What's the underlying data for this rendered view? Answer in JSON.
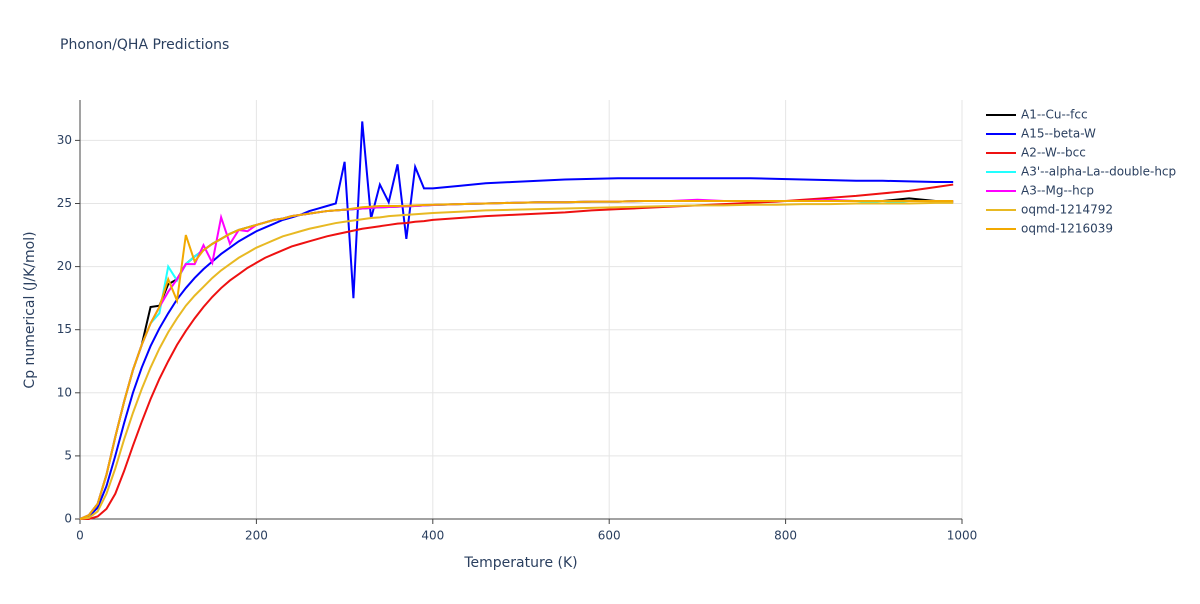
{
  "chart_data": {
    "type": "line",
    "title": "Phonon/QHA Predictions",
    "x_label": "Temperature (K)",
    "y_label": "Cp numerical (J/K/mol)",
    "x": [
      0,
      10,
      20,
      30,
      40,
      50,
      60,
      70,
      80,
      90,
      100,
      110,
      120,
      130,
      140,
      150,
      160,
      170,
      180,
      190,
      200,
      210,
      220,
      230,
      240,
      250,
      260,
      270,
      280,
      290,
      300,
      310,
      320,
      330,
      340,
      350,
      360,
      370,
      380,
      390,
      400,
      430,
      460,
      490,
      520,
      550,
      580,
      610,
      640,
      670,
      700,
      730,
      760,
      790,
      820,
      850,
      880,
      910,
      940,
      970,
      990
    ],
    "xlim": [
      0,
      1000
    ],
    "xticks": [
      0,
      200,
      400,
      600,
      800,
      1000
    ],
    "ylim": [
      0,
      33.2
    ],
    "yticks": [
      0,
      5,
      10,
      15,
      20,
      25,
      30
    ],
    "grid": true,
    "legend": "right",
    "series": [
      {
        "name": "A1--Cu--fcc",
        "color": "#000000",
        "values": [
          0,
          0.3,
          1.2,
          3.5,
          6.5,
          9.3,
          11.8,
          13.8,
          16.8,
          16.9,
          18.6,
          19.0,
          20.2,
          20.8,
          21.3,
          21.8,
          22.2,
          22.6,
          22.9,
          23.1,
          23.3,
          23.5,
          23.7,
          23.8,
          24.0,
          24.1,
          24.2,
          24.3,
          24.4,
          24.45,
          24.5,
          24.55,
          24.6,
          24.65,
          24.7,
          24.72,
          24.75,
          24.78,
          24.8,
          24.85,
          24.88,
          24.95,
          25.0,
          25.05,
          25.1,
          25.1,
          25.15,
          25.15,
          25.2,
          25.2,
          25.2,
          25.2,
          25.2,
          25.2,
          25.2,
          25.2,
          25.2,
          25.2,
          25.4,
          25.2,
          25.1
        ]
      },
      {
        "name": "A15--beta-W",
        "color": "#0000ff",
        "values": [
          0,
          0.2,
          0.9,
          2.6,
          5.0,
          7.6,
          10.0,
          12.0,
          13.7,
          15.1,
          16.3,
          17.4,
          18.3,
          19.1,
          19.8,
          20.4,
          21.0,
          21.5,
          22.0,
          22.4,
          22.8,
          23.1,
          23.4,
          23.7,
          23.9,
          24.1,
          24.4,
          24.6,
          24.8,
          25.0,
          28.3,
          17.5,
          31.5,
          23.8,
          26.5,
          25.1,
          28.1,
          22.2,
          27.9,
          26.2,
          26.2,
          26.4,
          26.6,
          26.7,
          26.8,
          26.9,
          26.95,
          27.0,
          27.0,
          27.0,
          27.0,
          27.0,
          27.0,
          26.95,
          26.9,
          26.85,
          26.8,
          26.8,
          26.75,
          26.7,
          26.7
        ]
      },
      {
        "name": "A2--W--bcc",
        "color": "#ee1111",
        "values": [
          0,
          0,
          0.2,
          0.8,
          2.0,
          3.8,
          5.8,
          7.7,
          9.5,
          11.1,
          12.5,
          13.8,
          14.9,
          15.9,
          16.8,
          17.6,
          18.3,
          18.9,
          19.4,
          19.9,
          20.3,
          20.7,
          21.0,
          21.3,
          21.6,
          21.8,
          22.0,
          22.2,
          22.4,
          22.55,
          22.7,
          22.85,
          23.0,
          23.1,
          23.2,
          23.3,
          23.4,
          23.45,
          23.55,
          23.6,
          23.7,
          23.85,
          24.0,
          24.1,
          24.2,
          24.3,
          24.45,
          24.55,
          24.65,
          24.75,
          24.85,
          24.95,
          25.05,
          25.15,
          25.3,
          25.45,
          25.6,
          25.8,
          26.0,
          26.3,
          26.5
        ]
      },
      {
        "name": "A3'--alpha-La--double-hcp",
        "color": "#22ffff",
        "values": [
          0,
          0.3,
          1.2,
          3.5,
          6.5,
          9.3,
          11.8,
          13.8,
          15.5,
          16.3,
          20.0,
          18.9,
          20.2,
          20.8,
          21.3,
          21.8,
          22.2,
          22.6,
          22.9,
          23.1,
          23.3,
          23.5,
          23.7,
          23.8,
          24.0,
          24.1,
          24.2,
          24.3,
          24.4,
          24.45,
          24.5,
          24.55,
          24.6,
          24.65,
          24.7,
          24.72,
          24.75,
          24.78,
          24.8,
          24.85,
          24.88,
          24.95,
          25.0,
          25.05,
          25.1,
          25.1,
          25.15,
          25.15,
          25.2,
          25.2,
          25.2,
          25.2,
          25.2,
          25.2,
          25.2,
          25.2,
          25.2,
          25.0,
          25.2,
          25.2,
          25.2
        ]
      },
      {
        "name": "A3--Mg--hcp",
        "color": "#ff00ff",
        "values": [
          0,
          0.3,
          1.2,
          3.5,
          6.5,
          9.3,
          11.8,
          13.8,
          15.5,
          16.8,
          18.0,
          19.0,
          20.2,
          20.2,
          21.7,
          20.3,
          23.9,
          21.8,
          22.9,
          22.8,
          23.3,
          23.5,
          23.7,
          23.8,
          24.0,
          24.1,
          24.2,
          24.3,
          24.4,
          24.45,
          24.5,
          24.55,
          24.6,
          24.65,
          24.7,
          24.72,
          24.75,
          24.78,
          24.8,
          24.85,
          24.88,
          24.95,
          25.0,
          25.05,
          25.1,
          25.1,
          25.15,
          25.15,
          25.2,
          25.2,
          25.3,
          25.2,
          25.2,
          25.2,
          25.2,
          25.3,
          25.2,
          25.2,
          25.2,
          25.2,
          25.2
        ]
      },
      {
        "name": "oqmd-1214792",
        "color": "#e8b923",
        "values": [
          0,
          0.1,
          0.6,
          2.0,
          4.0,
          6.3,
          8.4,
          10.3,
          12.0,
          13.5,
          14.8,
          15.9,
          16.9,
          17.7,
          18.4,
          19.1,
          19.7,
          20.2,
          20.7,
          21.1,
          21.5,
          21.8,
          22.1,
          22.4,
          22.6,
          22.8,
          23.0,
          23.15,
          23.3,
          23.45,
          23.55,
          23.65,
          23.75,
          23.85,
          23.9,
          24.0,
          24.05,
          24.1,
          24.15,
          24.2,
          24.25,
          24.35,
          24.45,
          24.5,
          24.55,
          24.6,
          24.65,
          24.7,
          24.75,
          24.8,
          24.85,
          24.85,
          24.9,
          24.9,
          24.95,
          24.95,
          25.0,
          25.0,
          25.0,
          25.05,
          25.05
        ]
      },
      {
        "name": "oqmd-1216039",
        "color": "#f2a900",
        "values": [
          0,
          0.3,
          1.2,
          3.5,
          6.5,
          9.3,
          11.8,
          13.8,
          15.5,
          16.8,
          19.0,
          17.3,
          22.5,
          20.4,
          21.3,
          21.8,
          22.2,
          22.6,
          22.9,
          23.1,
          23.3,
          23.5,
          23.7,
          23.8,
          24.0,
          24.1,
          24.2,
          24.3,
          24.4,
          24.45,
          24.5,
          24.6,
          24.7,
          24.75,
          24.8,
          24.8,
          24.8,
          24.82,
          24.85,
          24.88,
          24.9,
          24.95,
          25.0,
          25.05,
          25.1,
          25.1,
          25.15,
          25.15,
          25.2,
          25.2,
          25.2,
          25.2,
          25.2,
          25.2,
          25.2,
          25.2,
          25.2,
          25.2,
          25.2,
          25.2,
          25.2
        ]
      }
    ]
  }
}
